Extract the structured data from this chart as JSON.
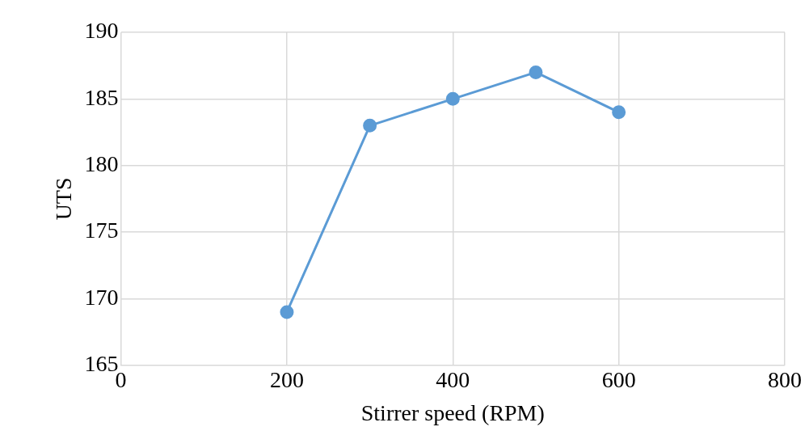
{
  "chart_data": {
    "type": "line",
    "xlabel": "Stirrer speed (RPM)",
    "ylabel": "UTS",
    "x": [
      200,
      300,
      400,
      500,
      600
    ],
    "series": [
      {
        "color": "#5b9bd5",
        "values": [
          169,
          183,
          185,
          187,
          184
        ]
      }
    ],
    "xlim": [
      0,
      800
    ],
    "xticks": [
      0,
      200,
      400,
      600,
      800
    ],
    "ylim": [
      165,
      190
    ],
    "yticks": [
      165,
      170,
      175,
      180,
      185,
      190
    ],
    "grid": true,
    "legend": false,
    "marker": "circle",
    "line_style": "solid"
  }
}
